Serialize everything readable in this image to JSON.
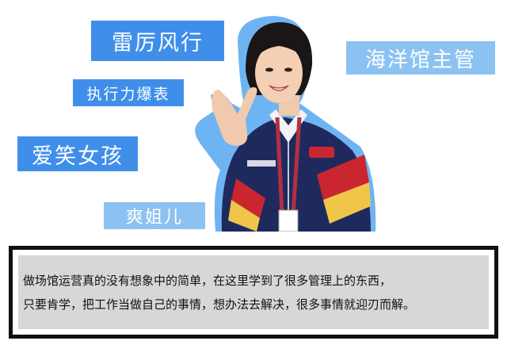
{
  "tags": {
    "t1": "雷厉风行",
    "t2": "执行力爆表",
    "t3": "爱笑女孩",
    "t4": "爽姐儿",
    "t5": "海洋馆主管"
  },
  "quote": {
    "line1": "做场馆运营真的没有想象中的简单，在这里学到了很多管理上的东西，",
    "line2": "只要肯学，把工作当做自己的事情，想办法去解决，很多事情就迎刃而解。"
  },
  "colors": {
    "tag_strong": "#3f8fea",
    "tag_light": "#8cc2f2",
    "jacket": "#1e2a5e",
    "stripe_red": "#c9262f",
    "stripe_yellow": "#f0c64a",
    "outline": "#6fb4f2"
  }
}
